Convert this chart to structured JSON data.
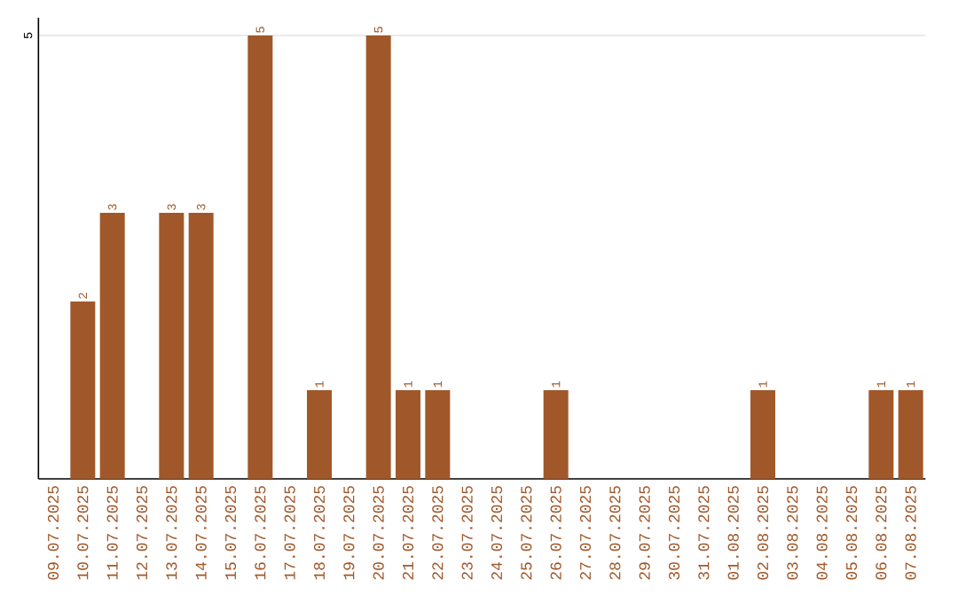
{
  "chart_data": {
    "type": "bar",
    "categories": [
      "09.07.2025",
      "10.07.2025",
      "11.07.2025",
      "12.07.2025",
      "13.07.2025",
      "14.07.2025",
      "15.07.2025",
      "16.07.2025",
      "17.07.2025",
      "18.07.2025",
      "19.07.2025",
      "20.07.2025",
      "21.07.2025",
      "22.07.2025",
      "23.07.2025",
      "24.07.2025",
      "25.07.2025",
      "26.07.2025",
      "27.07.2025",
      "28.07.2025",
      "29.07.2025",
      "30.07.2025",
      "31.07.2025",
      "01.08.2025",
      "02.08.2025",
      "03.08.2025",
      "04.08.2025",
      "05.08.2025",
      "06.08.2025",
      "07.08.2025"
    ],
    "values": [
      0,
      2,
      3,
      0,
      3,
      3,
      0,
      5,
      0,
      1,
      0,
      5,
      1,
      1,
      0,
      0,
      0,
      1,
      0,
      0,
      0,
      0,
      0,
      0,
      1,
      0,
      0,
      0,
      1,
      1
    ],
    "value_labels": [
      null,
      "2",
      "3",
      null,
      "3",
      "3",
      null,
      "5",
      null,
      "1",
      null,
      "5",
      "1",
      "1",
      null,
      null,
      null,
      "1",
      null,
      null,
      null,
      null,
      null,
      null,
      "1",
      null,
      null,
      null,
      "1",
      "1"
    ],
    "color": "#a0582a",
    "ylim": [
      0,
      5.2
    ],
    "yticks": [
      5
    ],
    "grid": "y"
  }
}
